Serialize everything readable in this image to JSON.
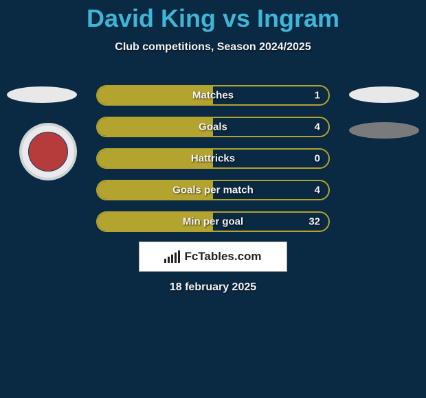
{
  "title": "David King vs Ingram",
  "subtitle": "Club competitions, Season 2024/2025",
  "colors": {
    "page_bg": "#0a2942",
    "title": "#3fb5d8",
    "text": "#f5f5f5",
    "bar_border": "#b3a32f",
    "bar_fill": "#b3a32f",
    "ellipse_light": "#e8e8e8",
    "ellipse_dark": "#7a7a7a"
  },
  "stats": [
    {
      "label": "Matches",
      "value": "1",
      "fill_pct": 50
    },
    {
      "label": "Goals",
      "value": "4",
      "fill_pct": 50
    },
    {
      "label": "Hattricks",
      "value": "0",
      "fill_pct": 50
    },
    {
      "label": "Goals per match",
      "value": "4",
      "fill_pct": 50
    },
    {
      "label": "Min per goal",
      "value": "32",
      "fill_pct": 50
    }
  ],
  "footer_brand": "FcTables.com",
  "footer_bars_heights": [
    6,
    9,
    12,
    15,
    18
  ],
  "date_text": "18 february 2025"
}
